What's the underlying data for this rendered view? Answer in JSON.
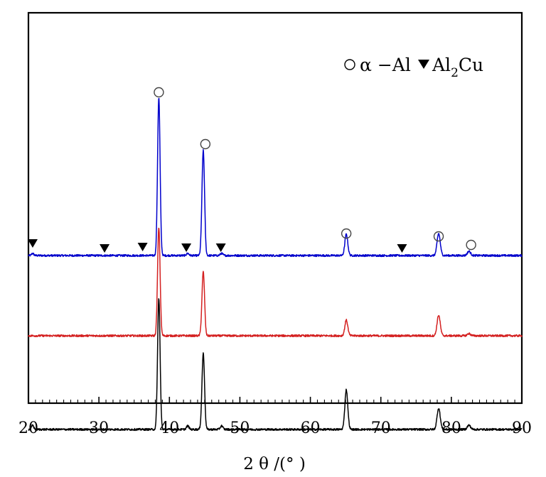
{
  "chart_data": {
    "type": "line",
    "title": "",
    "xlabel": "2 θ /(° )",
    "ylabel": "",
    "xlim": [
      20,
      90
    ],
    "x_ticks": [
      "20",
      "30",
      "40",
      "50",
      "60",
      "70",
      "80",
      "90"
    ],
    "y_ticks_shown": false,
    "grid": false,
    "legend": {
      "placement": "top-right",
      "entries": [
        {
          "marker": "open-circle",
          "label": "α −Al"
        },
        {
          "marker": "filled-down-triangle",
          "label": "Al2Cu",
          "label_main": "Al",
          "label_sub": "2",
          "label_tail": "Cu"
        }
      ]
    },
    "series": [
      {
        "color": "#0000cc",
        "baseline": 0.4,
        "peaks": [
          {
            "x": 38.5,
            "h": 2.23
          },
          {
            "x": 44.8,
            "h": 1.48
          },
          {
            "x": 65.1,
            "h": 0.3
          },
          {
            "x": 78.2,
            "h": 0.31
          },
          {
            "x": 82.5,
            "h": 0.06
          },
          {
            "x": 47.4,
            "h": 0.03
          },
          {
            "x": 42.6,
            "h": 0.03
          },
          {
            "x": 20.6,
            "h": 0.03
          }
        ],
        "markers": [
          {
            "x": 38.5,
            "marker": "open-circle",
            "y": 2.7
          },
          {
            "x": 45.1,
            "marker": "open-circle",
            "y": 1.97
          },
          {
            "x": 65.1,
            "marker": "open-circle",
            "y": 0.71
          },
          {
            "x": 78.2,
            "marker": "open-circle",
            "y": 0.67
          },
          {
            "x": 82.8,
            "marker": "open-circle",
            "y": 0.55
          },
          {
            "x": 20.6,
            "marker": "filled-down-triangle",
            "y": 0.57
          },
          {
            "x": 30.8,
            "marker": "filled-down-triangle",
            "y": 0.5
          },
          {
            "x": 36.2,
            "marker": "filled-down-triangle",
            "y": 0.52
          },
          {
            "x": 42.4,
            "marker": "filled-down-triangle",
            "y": 0.51
          },
          {
            "x": 47.3,
            "marker": "filled-down-triangle",
            "y": 0.51
          },
          {
            "x": 73.0,
            "marker": "filled-down-triangle",
            "y": 0.5
          }
        ]
      },
      {
        "color": "#d42020",
        "baseline": -0.73,
        "peaks": [
          {
            "x": 38.5,
            "h": 1.53
          },
          {
            "x": 44.8,
            "h": 0.9
          },
          {
            "x": 65.1,
            "h": 0.22
          },
          {
            "x": 78.2,
            "h": 0.29
          },
          {
            "x": 82.5,
            "h": 0.03
          }
        ],
        "markers": []
      },
      {
        "color": "#000000",
        "baseline": -2.05,
        "peaks": [
          {
            "x": 38.5,
            "h": 1.85
          },
          {
            "x": 44.8,
            "h": 1.07
          },
          {
            "x": 65.1,
            "h": 0.56
          },
          {
            "x": 78.2,
            "h": 0.3
          },
          {
            "x": 82.5,
            "h": 0.06
          },
          {
            "x": 47.4,
            "h": 0.05
          },
          {
            "x": 42.6,
            "h": 0.05
          },
          {
            "x": 20.6,
            "h": 0.06
          }
        ],
        "markers": []
      }
    ]
  }
}
